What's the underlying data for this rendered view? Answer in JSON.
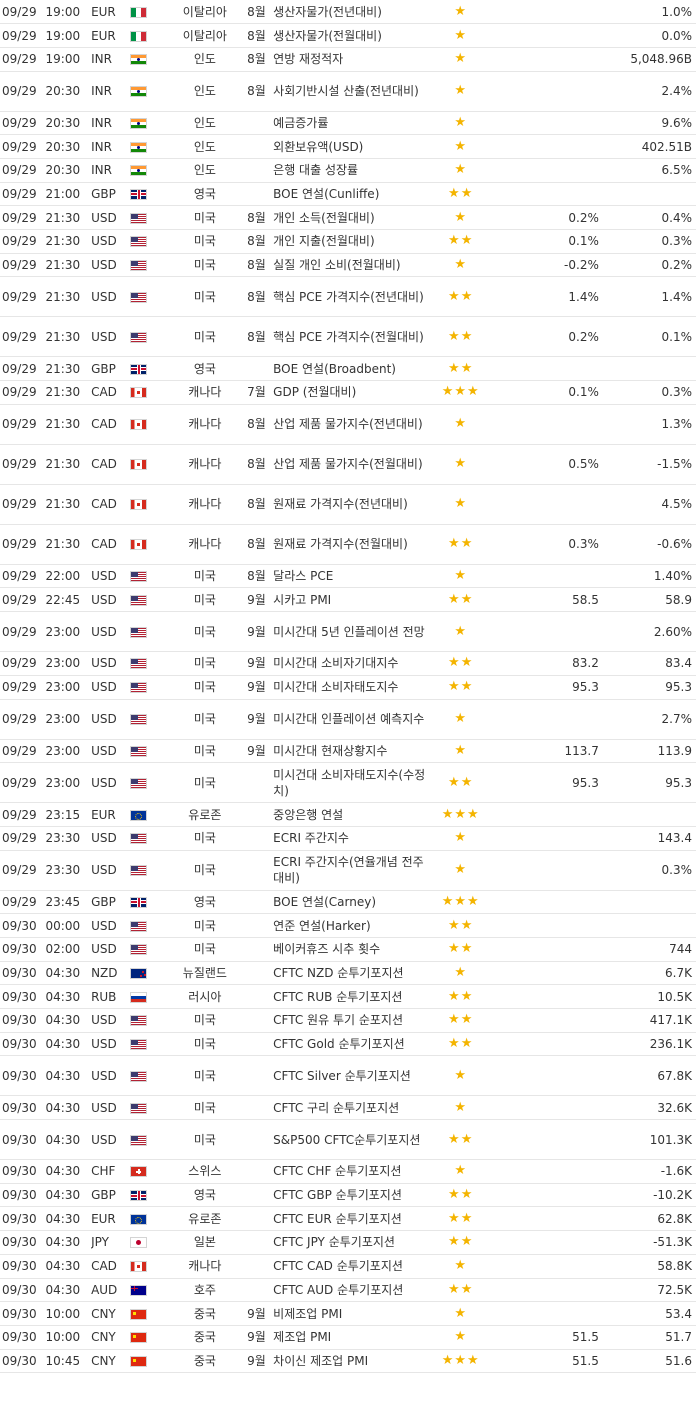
{
  "colors": {
    "star": "#f4b400",
    "row_border": "#e6e6e6",
    "text": "#333333"
  },
  "star_glyph": "★",
  "rows": [
    {
      "date": "09/29",
      "time": "19:00",
      "currency": "EUR",
      "flag": "italy-flag-icon",
      "country": "이탈리아",
      "period": "8월",
      "event": "생산자물가(전년대비)",
      "stars": 1,
      "forecast": "",
      "previous": "1.0%"
    },
    {
      "date": "09/29",
      "time": "19:00",
      "currency": "EUR",
      "flag": "italy-flag-icon",
      "country": "이탈리아",
      "period": "8월",
      "event": "생산자물가(전월대비)",
      "stars": 1,
      "forecast": "",
      "previous": "0.0%"
    },
    {
      "date": "09/29",
      "time": "19:00",
      "currency": "INR",
      "flag": "india-flag-icon",
      "country": "인도",
      "period": "8월",
      "event": "연방 재정적자",
      "stars": 1,
      "forecast": "",
      "previous": "5,048.96B"
    },
    {
      "date": "09/29",
      "time": "20:30",
      "currency": "INR",
      "flag": "india-flag-icon",
      "country": "인도",
      "period": "8월",
      "event": "사회기반시설 산출(전년대비)",
      "stars": 1,
      "forecast": "",
      "previous": "2.4%"
    },
    {
      "date": "09/29",
      "time": "20:30",
      "currency": "INR",
      "flag": "india-flag-icon",
      "country": "인도",
      "period": "",
      "event": "예금증가률",
      "stars": 1,
      "forecast": "",
      "previous": "9.6%"
    },
    {
      "date": "09/29",
      "time": "20:30",
      "currency": "INR",
      "flag": "india-flag-icon",
      "country": "인도",
      "period": "",
      "event": "외환보유액(USD)",
      "stars": 1,
      "forecast": "",
      "previous": "402.51B"
    },
    {
      "date": "09/29",
      "time": "20:30",
      "currency": "INR",
      "flag": "india-flag-icon",
      "country": "인도",
      "period": "",
      "event": "은행 대출 성장률",
      "stars": 1,
      "forecast": "",
      "previous": "6.5%"
    },
    {
      "date": "09/29",
      "time": "21:00",
      "currency": "GBP",
      "flag": "uk-flag-icon",
      "country": "영국",
      "period": "",
      "event": "BOE 연설(Cunliffe)",
      "stars": 2,
      "forecast": "",
      "previous": ""
    },
    {
      "date": "09/29",
      "time": "21:30",
      "currency": "USD",
      "flag": "us-flag-icon",
      "country": "미국",
      "period": "8월",
      "event": "개인 소득(전월대비)",
      "stars": 1,
      "forecast": "0.2%",
      "previous": "0.4%"
    },
    {
      "date": "09/29",
      "time": "21:30",
      "currency": "USD",
      "flag": "us-flag-icon",
      "country": "미국",
      "period": "8월",
      "event": "개인 지출(전월대비)",
      "stars": 2,
      "forecast": "0.1%",
      "previous": "0.3%"
    },
    {
      "date": "09/29",
      "time": "21:30",
      "currency": "USD",
      "flag": "us-flag-icon",
      "country": "미국",
      "period": "8월",
      "event": "실질 개인 소비(전월대비)",
      "stars": 1,
      "forecast": "-0.2%",
      "previous": "0.2%"
    },
    {
      "date": "09/29",
      "time": "21:30",
      "currency": "USD",
      "flag": "us-flag-icon",
      "country": "미국",
      "period": "8월",
      "event": "핵심 PCE 가격지수(전년대비)",
      "stars": 2,
      "forecast": "1.4%",
      "previous": "1.4%"
    },
    {
      "date": "09/29",
      "time": "21:30",
      "currency": "USD",
      "flag": "us-flag-icon",
      "country": "미국",
      "period": "8월",
      "event": "핵심 PCE 가격지수(전월대비)",
      "stars": 2,
      "forecast": "0.2%",
      "previous": "0.1%"
    },
    {
      "date": "09/29",
      "time": "21:30",
      "currency": "GBP",
      "flag": "uk-flag-icon",
      "country": "영국",
      "period": "",
      "event": "BOE 연설(Broadbent)",
      "stars": 2,
      "forecast": "",
      "previous": ""
    },
    {
      "date": "09/29",
      "time": "21:30",
      "currency": "CAD",
      "flag": "canada-flag-icon",
      "country": "캐나다",
      "period": "7월",
      "event": "GDP (전월대비)",
      "stars": 3,
      "forecast": "0.1%",
      "previous": "0.3%"
    },
    {
      "date": "09/29",
      "time": "21:30",
      "currency": "CAD",
      "flag": "canada-flag-icon",
      "country": "캐나다",
      "period": "8월",
      "event": "산업 제품 물가지수(전년대비)",
      "stars": 1,
      "forecast": "",
      "previous": "1.3%"
    },
    {
      "date": "09/29",
      "time": "21:30",
      "currency": "CAD",
      "flag": "canada-flag-icon",
      "country": "캐나다",
      "period": "8월",
      "event": "산업 제품 물가지수(전월대비)",
      "stars": 1,
      "forecast": "0.5%",
      "previous": "-1.5%"
    },
    {
      "date": "09/29",
      "time": "21:30",
      "currency": "CAD",
      "flag": "canada-flag-icon",
      "country": "캐나다",
      "period": "8월",
      "event": "원재료 가격지수(전년대비)",
      "stars": 1,
      "forecast": "",
      "previous": "4.5%"
    },
    {
      "date": "09/29",
      "time": "21:30",
      "currency": "CAD",
      "flag": "canada-flag-icon",
      "country": "캐나다",
      "period": "8월",
      "event": "원재료 가격지수(전월대비)",
      "stars": 2,
      "forecast": "0.3%",
      "previous": "-0.6%"
    },
    {
      "date": "09/29",
      "time": "22:00",
      "currency": "USD",
      "flag": "us-flag-icon",
      "country": "미국",
      "period": "8월",
      "event": "달라스 PCE",
      "stars": 1,
      "forecast": "",
      "previous": "1.40%"
    },
    {
      "date": "09/29",
      "time": "22:45",
      "currency": "USD",
      "flag": "us-flag-icon",
      "country": "미국",
      "period": "9월",
      "event": "시카고 PMI",
      "stars": 2,
      "forecast": "58.5",
      "previous": "58.9"
    },
    {
      "date": "09/29",
      "time": "23:00",
      "currency": "USD",
      "flag": "us-flag-icon",
      "country": "미국",
      "period": "9월",
      "event": "미시간대 5년 인플레이션 전망",
      "stars": 1,
      "forecast": "",
      "previous": "2.60%"
    },
    {
      "date": "09/29",
      "time": "23:00",
      "currency": "USD",
      "flag": "us-flag-icon",
      "country": "미국",
      "period": "9월",
      "event": "미시간대 소비자기대지수",
      "stars": 2,
      "forecast": "83.2",
      "previous": "83.4"
    },
    {
      "date": "09/29",
      "time": "23:00",
      "currency": "USD",
      "flag": "us-flag-icon",
      "country": "미국",
      "period": "9월",
      "event": "미시간대 소비자태도지수",
      "stars": 2,
      "forecast": "95.3",
      "previous": "95.3"
    },
    {
      "date": "09/29",
      "time": "23:00",
      "currency": "USD",
      "flag": "us-flag-icon",
      "country": "미국",
      "period": "9월",
      "event": "미시간대 인플레이션 예측지수",
      "stars": 1,
      "forecast": "",
      "previous": "2.7%"
    },
    {
      "date": "09/29",
      "time": "23:00",
      "currency": "USD",
      "flag": "us-flag-icon",
      "country": "미국",
      "period": "9월",
      "event": "미시간대 현재상황지수",
      "stars": 1,
      "forecast": "113.7",
      "previous": "113.9"
    },
    {
      "date": "09/29",
      "time": "23:00",
      "currency": "USD",
      "flag": "us-flag-icon",
      "country": "미국",
      "period": "",
      "event": "미시건대 소비자태도지수(수정치)",
      "stars": 2,
      "forecast": "95.3",
      "previous": "95.3"
    },
    {
      "date": "09/29",
      "time": "23:15",
      "currency": "EUR",
      "flag": "eu-flag-icon",
      "country": "유로존",
      "period": "",
      "event": "중앙은행 연설",
      "stars": 3,
      "forecast": "",
      "previous": ""
    },
    {
      "date": "09/29",
      "time": "23:30",
      "currency": "USD",
      "flag": "us-flag-icon",
      "country": "미국",
      "period": "",
      "event": "ECRI 주간지수",
      "stars": 1,
      "forecast": "",
      "previous": "143.4"
    },
    {
      "date": "09/29",
      "time": "23:30",
      "currency": "USD",
      "flag": "us-flag-icon",
      "country": "미국",
      "period": "",
      "event": "ECRI 주간지수(연율개념 전주대비)",
      "stars": 1,
      "forecast": "",
      "previous": "0.3%"
    },
    {
      "date": "09/29",
      "time": "23:45",
      "currency": "GBP",
      "flag": "uk-flag-icon",
      "country": "영국",
      "period": "",
      "event": "BOE 연설(Carney)",
      "stars": 3,
      "forecast": "",
      "previous": ""
    },
    {
      "date": "09/30",
      "time": "00:00",
      "currency": "USD",
      "flag": "us-flag-icon",
      "country": "미국",
      "period": "",
      "event": "연준 연설(Harker)",
      "stars": 2,
      "forecast": "",
      "previous": ""
    },
    {
      "date": "09/30",
      "time": "02:00",
      "currency": "USD",
      "flag": "us-flag-icon",
      "country": "미국",
      "period": "",
      "event": "베이커휴즈 시추 횟수",
      "stars": 2,
      "forecast": "",
      "previous": "744"
    },
    {
      "date": "09/30",
      "time": "04:30",
      "currency": "NZD",
      "flag": "new-zealand-flag-icon",
      "country": "뉴질랜드",
      "period": "",
      "event": "CFTC NZD 순투기포지션",
      "stars": 1,
      "forecast": "",
      "previous": "6.7K"
    },
    {
      "date": "09/30",
      "time": "04:30",
      "currency": "RUB",
      "flag": "russia-flag-icon",
      "country": "러시아",
      "period": "",
      "event": "CFTC RUB 순투기포지션",
      "stars": 2,
      "forecast": "",
      "previous": "10.5K"
    },
    {
      "date": "09/30",
      "time": "04:30",
      "currency": "USD",
      "flag": "us-flag-icon",
      "country": "미국",
      "period": "",
      "event": "CFTC 원유 투기 순포지션",
      "stars": 2,
      "forecast": "",
      "previous": "417.1K"
    },
    {
      "date": "09/30",
      "time": "04:30",
      "currency": "USD",
      "flag": "us-flag-icon",
      "country": "미국",
      "period": "",
      "event": "CFTC Gold 순투기포지션",
      "stars": 2,
      "forecast": "",
      "previous": "236.1K"
    },
    {
      "date": "09/30",
      "time": "04:30",
      "currency": "USD",
      "flag": "us-flag-icon",
      "country": "미국",
      "period": "",
      "event": "CFTC Silver 순투기포지션",
      "stars": 1,
      "forecast": "",
      "previous": "67.8K"
    },
    {
      "date": "09/30",
      "time": "04:30",
      "currency": "USD",
      "flag": "us-flag-icon",
      "country": "미국",
      "period": "",
      "event": "CFTC 구리 순투기포지션",
      "stars": 1,
      "forecast": "",
      "previous": "32.6K"
    },
    {
      "date": "09/30",
      "time": "04:30",
      "currency": "USD",
      "flag": "us-flag-icon",
      "country": "미국",
      "period": "",
      "event": "S&P500 CFTC순투기포지션",
      "stars": 2,
      "forecast": "",
      "previous": "101.3K"
    },
    {
      "date": "09/30",
      "time": "04:30",
      "currency": "CHF",
      "flag": "switzerland-flag-icon",
      "country": "스위스",
      "period": "",
      "event": "CFTC CHF 순투기포지션",
      "stars": 1,
      "forecast": "",
      "previous": "-1.6K"
    },
    {
      "date": "09/30",
      "time": "04:30",
      "currency": "GBP",
      "flag": "uk-flag-icon",
      "country": "영국",
      "period": "",
      "event": "CFTC GBP 순투기포지션",
      "stars": 2,
      "forecast": "",
      "previous": "-10.2K"
    },
    {
      "date": "09/30",
      "time": "04:30",
      "currency": "EUR",
      "flag": "eu-flag-icon",
      "country": "유로존",
      "period": "",
      "event": "CFTC EUR 순투기포지션",
      "stars": 2,
      "forecast": "",
      "previous": "62.8K"
    },
    {
      "date": "09/30",
      "time": "04:30",
      "currency": "JPY",
      "flag": "japan-flag-icon",
      "country": "일본",
      "period": "",
      "event": "CFTC JPY 순투기포지션",
      "stars": 2,
      "forecast": "",
      "previous": "-51.3K"
    },
    {
      "date": "09/30",
      "time": "04:30",
      "currency": "CAD",
      "flag": "canada-flag-icon",
      "country": "캐나다",
      "period": "",
      "event": "CFTC CAD 순투기포지션",
      "stars": 1,
      "forecast": "",
      "previous": "58.8K"
    },
    {
      "date": "09/30",
      "time": "04:30",
      "currency": "AUD",
      "flag": "australia-flag-icon",
      "country": "호주",
      "period": "",
      "event": "CFTC AUD 순투기포지션",
      "stars": 2,
      "forecast": "",
      "previous": "72.5K"
    },
    {
      "date": "09/30",
      "time": "10:00",
      "currency": "CNY",
      "flag": "china-flag-icon",
      "country": "중국",
      "period": "9월",
      "event": "비제조업 PMI",
      "stars": 1,
      "forecast": "",
      "previous": "53.4"
    },
    {
      "date": "09/30",
      "time": "10:00",
      "currency": "CNY",
      "flag": "china-flag-icon",
      "country": "중국",
      "period": "9월",
      "event": "제조업 PMI",
      "stars": 1,
      "forecast": "51.5",
      "previous": "51.7"
    },
    {
      "date": "09/30",
      "time": "10:45",
      "currency": "CNY",
      "flag": "china-flag-icon",
      "country": "중국",
      "period": "9월",
      "event": "차이신 제조업 PMI",
      "stars": 3,
      "forecast": "51.5",
      "previous": "51.6"
    }
  ]
}
